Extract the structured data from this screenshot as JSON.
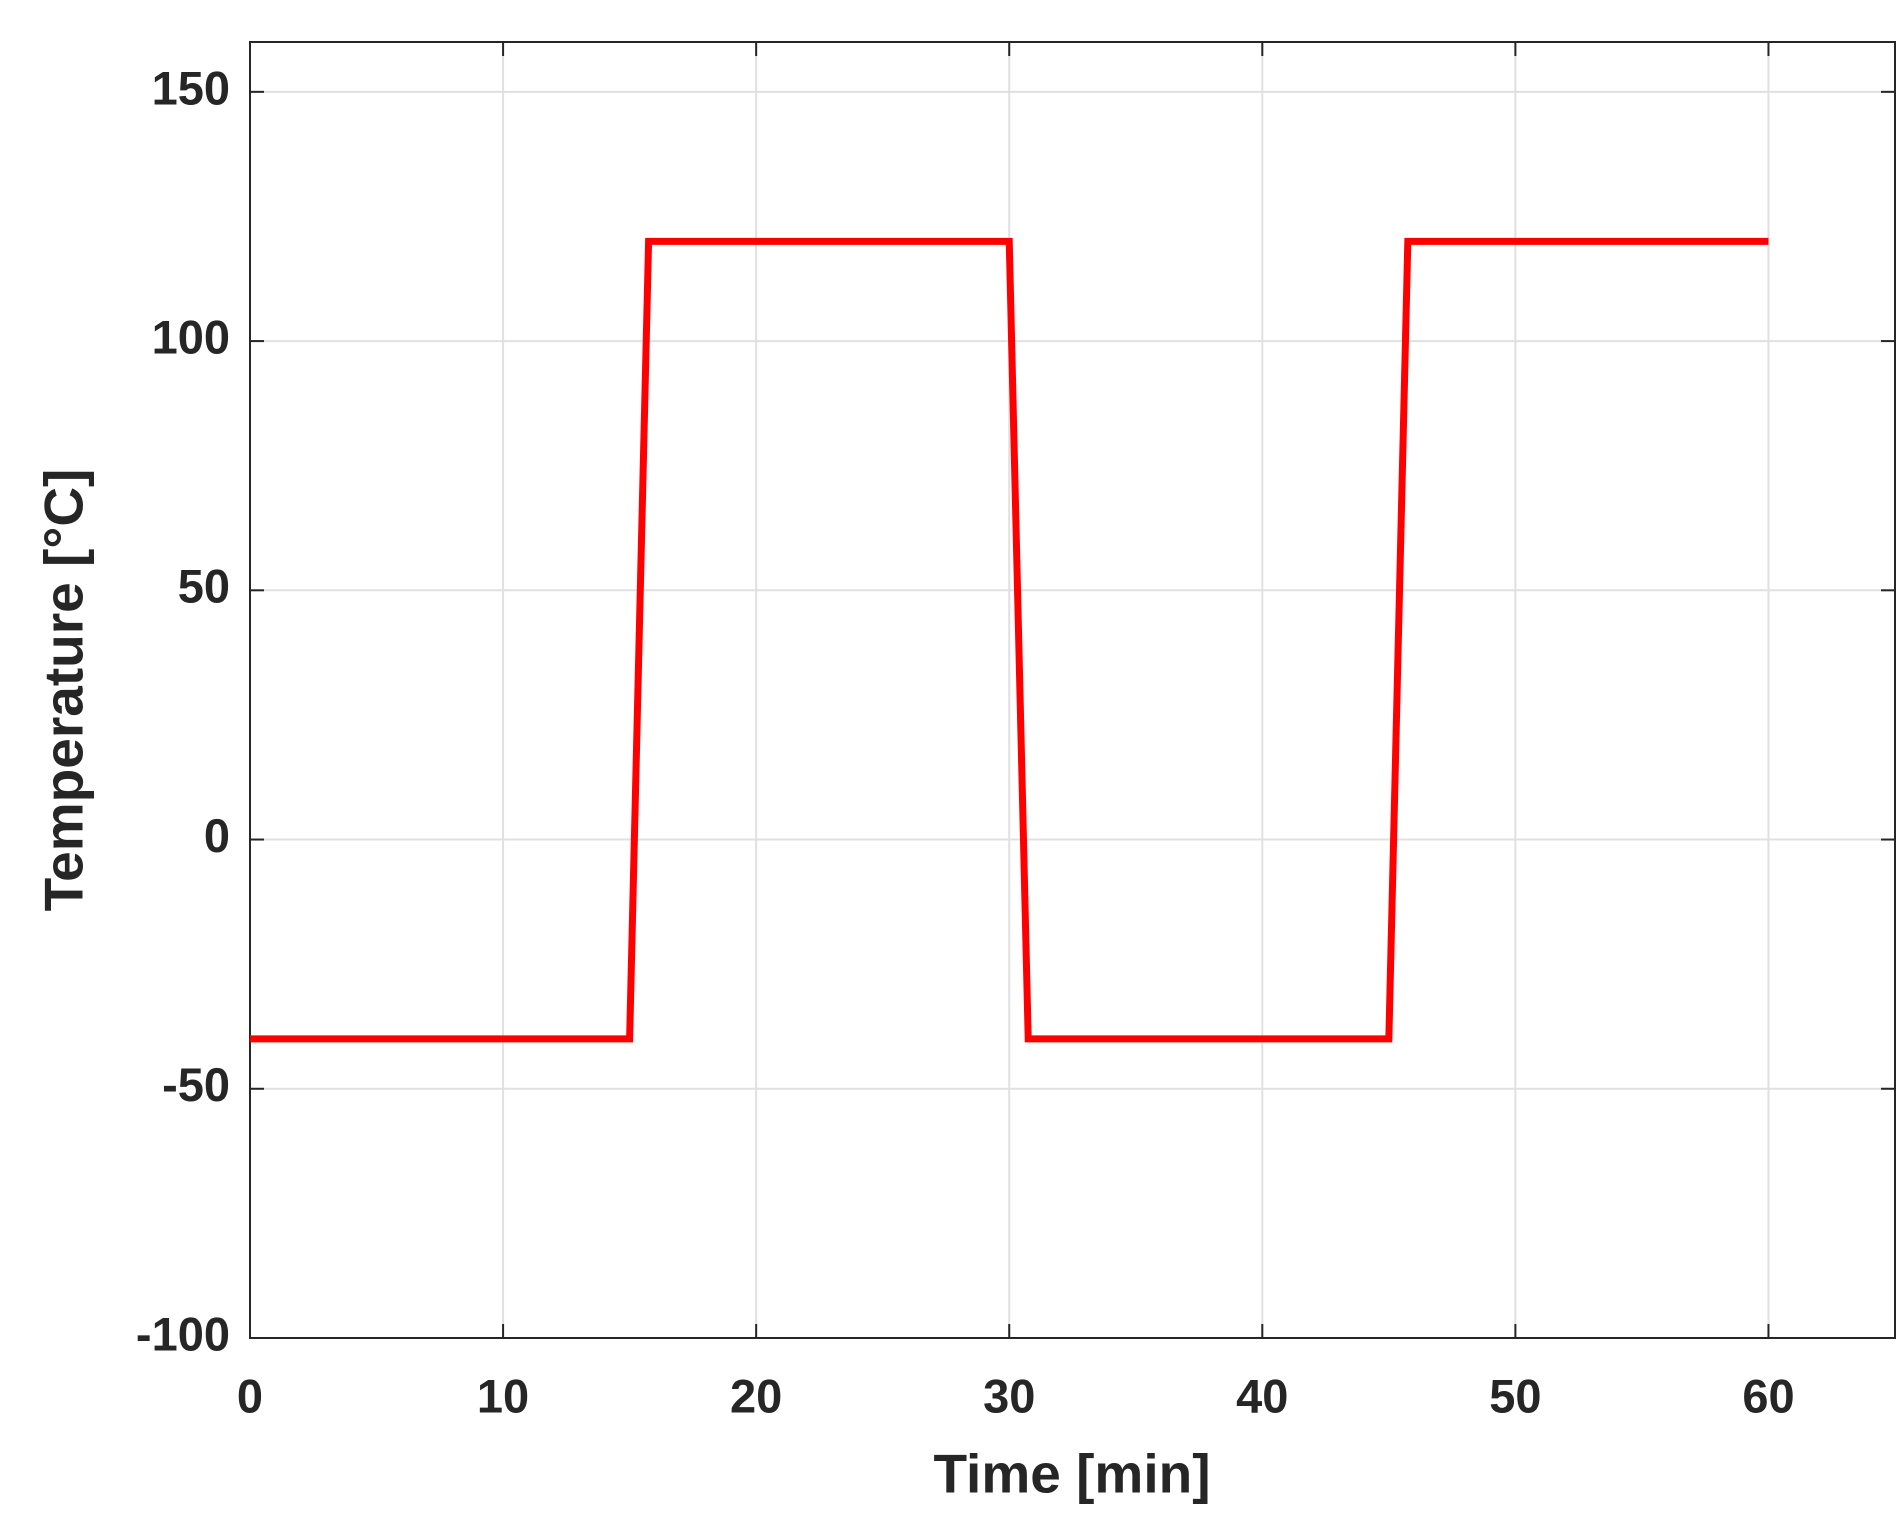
{
  "chart_data": {
    "type": "line",
    "x_label": "Time [min]",
    "y_label": "Temperature [°C]",
    "series": [
      {
        "name": "Temperature",
        "color": "#ff0000",
        "x": [
          0,
          15,
          15.75,
          30,
          30.75,
          45,
          45.75,
          60
        ],
        "values": [
          -40,
          -40,
          120,
          120,
          -40,
          -40,
          120,
          120
        ]
      }
    ],
    "xlim": [
      0,
      65
    ],
    "xticks": [
      0,
      10,
      20,
      30,
      40,
      50,
      60
    ],
    "ylim": [
      -100,
      160
    ],
    "yticks": [
      -100,
      -50,
      0,
      50,
      100,
      150
    ],
    "grid": true
  }
}
